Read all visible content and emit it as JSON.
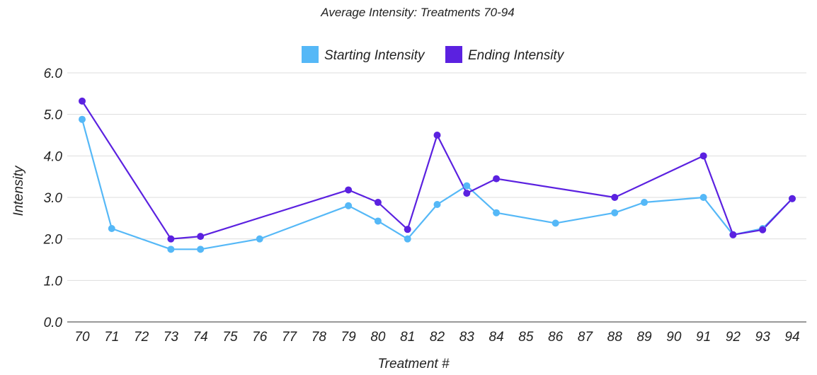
{
  "chart_data": {
    "type": "line",
    "title": "Average Intensity: Treatments 70-94",
    "xlabel": "Treatment #",
    "ylabel": "Intensity",
    "ylim": [
      0,
      6
    ],
    "yticks": [
      "0.0",
      "1.0",
      "2.0",
      "3.0",
      "4.0",
      "5.0",
      "6.0"
    ],
    "grid": true,
    "legend_position": "top-center",
    "categories": [
      "70",
      "71",
      "72",
      "73",
      "74",
      "75",
      "76",
      "77",
      "78",
      "79",
      "80",
      "81",
      "82",
      "83",
      "84",
      "85",
      "86",
      "87",
      "88",
      "89",
      "90",
      "91",
      "92",
      "93",
      "94"
    ],
    "series": [
      {
        "name": "Starting Intensity",
        "color": "#55b8f7",
        "values": [
          4.88,
          2.25,
          null,
          1.75,
          1.75,
          null,
          2.0,
          null,
          null,
          2.8,
          2.43,
          2.0,
          2.83,
          3.28,
          2.63,
          null,
          2.38,
          null,
          2.63,
          2.88,
          null,
          3.0,
          2.1,
          2.25,
          2.97
        ]
      },
      {
        "name": "Ending Intensity",
        "color": "#5b21e0",
        "values": [
          5.32,
          null,
          null,
          2.0,
          2.06,
          null,
          null,
          null,
          null,
          3.18,
          2.88,
          2.23,
          4.5,
          3.1,
          3.45,
          null,
          null,
          null,
          3.0,
          null,
          null,
          4.0,
          2.1,
          2.22,
          2.97
        ]
      }
    ]
  }
}
